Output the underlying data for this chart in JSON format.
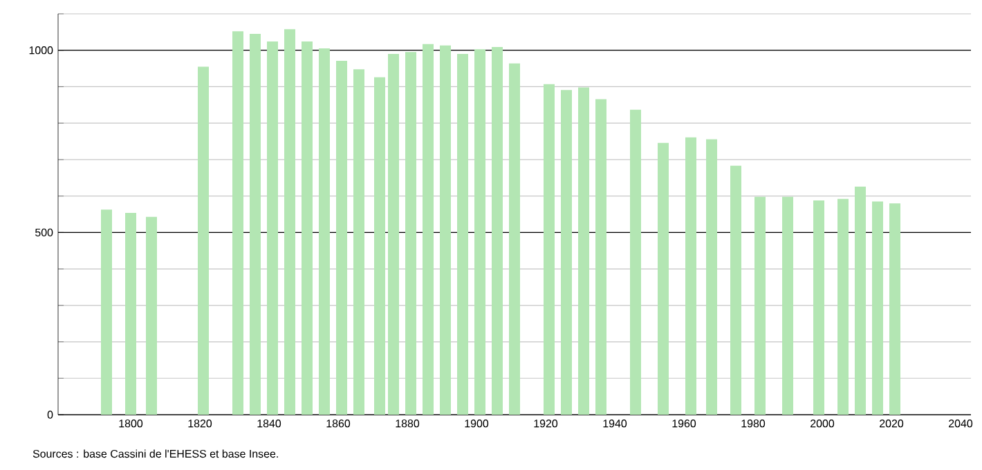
{
  "chart_data": {
    "type": "bar",
    "x": [
      1793,
      1800,
      1806,
      1821,
      1831,
      1836,
      1841,
      1846,
      1851,
      1856,
      1861,
      1866,
      1872,
      1876,
      1881,
      1886,
      1891,
      1896,
      1901,
      1906,
      1911,
      1921,
      1926,
      1931,
      1936,
      1946,
      1954,
      1962,
      1968,
      1975,
      1982,
      1990,
      1999,
      2006,
      2011,
      2016,
      2021
    ],
    "values": [
      563,
      554,
      543,
      955,
      1052,
      1045,
      1024,
      1058,
      1024,
      1005,
      971,
      948,
      926,
      990,
      995,
      1017,
      1013,
      990,
      1003,
      1009,
      964,
      907,
      891,
      898,
      866,
      837,
      746,
      761,
      756,
      683,
      598,
      598,
      588,
      592,
      626,
      585,
      580
    ],
    "color": "#b3e6b3",
    "xlim": [
      1779,
      2043
    ],
    "xticks": [
      1800,
      1820,
      1840,
      1860,
      1880,
      1900,
      1920,
      1940,
      1960,
      1980,
      2000,
      2020,
      2040
    ],
    "ylim": [
      0,
      1100
    ],
    "yticks": [
      0,
      {
        "value": 100,
        "label": null
      },
      {
        "value": 200,
        "label": null
      },
      {
        "value": 300,
        "label": null
      },
      {
        "value": 400,
        "label": null
      },
      500,
      {
        "value": 600,
        "label": null
      },
      {
        "value": 700,
        "label": null
      },
      {
        "value": 800,
        "label": null
      },
      {
        "value": 900,
        "label": null
      },
      1000,
      {
        "value": 1100,
        "label": null
      }
    ],
    "grid": "y",
    "annotations": [
      "Sources : base Cassini de l'EHESS et base Insee."
    ]
  }
}
